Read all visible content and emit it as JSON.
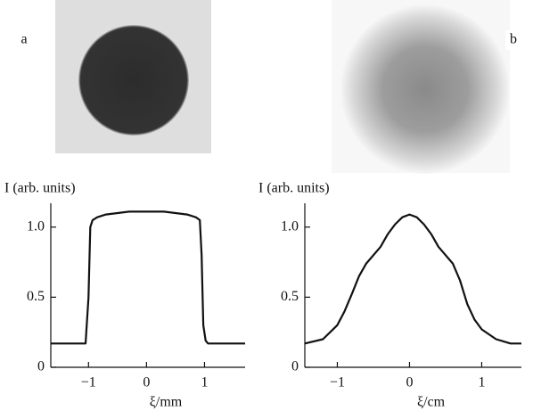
{
  "chart_data": [
    {
      "type": "line",
      "panel": "a",
      "ylabel": "I (arb. units)",
      "xlabel": "ξ/mm",
      "x": [
        -1.65,
        -1.2,
        -1.05,
        -1.0,
        -0.97,
        -0.93,
        -0.85,
        -0.7,
        -0.5,
        -0.3,
        0,
        0.3,
        0.5,
        0.7,
        0.85,
        0.92,
        0.95,
        0.98,
        1.02,
        1.06,
        1.2,
        1.7
      ],
      "values": [
        0.17,
        0.17,
        0.17,
        0.5,
        1.0,
        1.05,
        1.07,
        1.09,
        1.1,
        1.11,
        1.11,
        1.11,
        1.1,
        1.09,
        1.07,
        1.05,
        0.8,
        0.3,
        0.19,
        0.17,
        0.17,
        0.17
      ],
      "color": "#111111",
      "xlim": [
        -1.65,
        1.7
      ],
      "ylim": [
        0,
        1.17
      ],
      "xticks": [
        {
          "value": -1,
          "label": "−1"
        },
        0,
        1
      ],
      "yticks": [
        0,
        0.5,
        {
          "value": 1,
          "label": "1.0"
        }
      ]
    },
    {
      "type": "line",
      "panel": "b",
      "ylabel": "I (arb. units)",
      "xlabel": "ξ/cm",
      "x": [
        -1.45,
        -1.2,
        -1.0,
        -0.9,
        -0.8,
        -0.7,
        -0.6,
        -0.4,
        -0.3,
        -0.2,
        -0.1,
        0,
        0.1,
        0.2,
        0.3,
        0.4,
        0.6,
        0.7,
        0.8,
        0.9,
        1.0,
        1.2,
        1.4,
        1.55
      ],
      "values": [
        0.17,
        0.2,
        0.3,
        0.4,
        0.52,
        0.65,
        0.74,
        0.86,
        0.95,
        1.02,
        1.07,
        1.09,
        1.07,
        1.02,
        0.95,
        0.86,
        0.74,
        0.62,
        0.45,
        0.34,
        0.27,
        0.2,
        0.17,
        0.17
      ],
      "color": "#111111",
      "xlim": [
        -1.45,
        1.55
      ],
      "ylim": [
        0,
        1.17
      ],
      "xticks": [
        {
          "value": -1,
          "label": "−1"
        },
        0,
        1
      ],
      "yticks": [
        0,
        0.5,
        {
          "value": 1,
          "label": "1.0"
        }
      ]
    }
  ]
}
